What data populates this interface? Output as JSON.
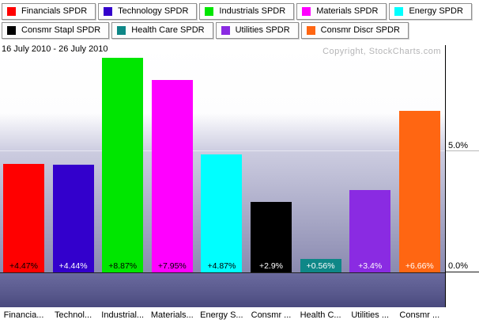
{
  "header": {
    "copyright": "Copyright, StockCharts.com"
  },
  "chart_data": {
    "type": "bar",
    "title": "16 July 2010 - 26 July 2010",
    "unit": "percent change",
    "ylim": [
      0,
      9.4
    ],
    "grid": true,
    "legend_position": "top",
    "y_ticks": [
      {
        "label": "5.0%",
        "value": 5.0
      },
      {
        "label": "0.0%",
        "value": 0.0
      }
    ],
    "bars": [
      {
        "legend_label": "Financials SPDR",
        "tick_label": "Financia...",
        "value": 4.47,
        "value_label": "+4.47%",
        "color": "#FF0000",
        "value_label_color": "#000000"
      },
      {
        "legend_label": "Technology SPDR",
        "tick_label": "Technol...",
        "value": 4.44,
        "value_label": "+4.44%",
        "color": "#3300CC",
        "value_label_color": "#FFFFFF"
      },
      {
        "legend_label": "Industrials SPDR",
        "tick_label": "Industrial...",
        "value": 8.87,
        "value_label": "+8.87%",
        "color": "#00E600",
        "value_label_color": "#000000"
      },
      {
        "legend_label": "Materials SPDR",
        "tick_label": "Materials...",
        "value": 7.95,
        "value_label": "+7.95%",
        "color": "#FF00FF",
        "value_label_color": "#000000"
      },
      {
        "legend_label": "Energy SPDR",
        "tick_label": "Energy S...",
        "value": 4.87,
        "value_label": "+4.87%",
        "color": "#00FFFF",
        "value_label_color": "#000000"
      },
      {
        "legend_label": "Consmr Stapl SPDR",
        "tick_label": "Consmr ...",
        "value": 2.9,
        "value_label": "+2.9%",
        "color": "#000000",
        "value_label_color": "#FFFFFF"
      },
      {
        "legend_label": "Health Care SPDR",
        "tick_label": "Health C...",
        "value": 0.56,
        "value_label": "+0.56%",
        "color": "#0E8787",
        "value_label_color": "#FFFFFF"
      },
      {
        "legend_label": "Utilities SPDR",
        "tick_label": "Utilities ...",
        "value": 3.4,
        "value_label": "+3.4%",
        "color": "#8A2BE2",
        "value_label_color": "#FFFFFF"
      },
      {
        "legend_label": "Consmr Discr SPDR",
        "tick_label": "Consmr ...",
        "value": 6.66,
        "value_label": "+6.66%",
        "color": "#FF6612",
        "value_label_color": "#FFFFFF"
      }
    ]
  }
}
